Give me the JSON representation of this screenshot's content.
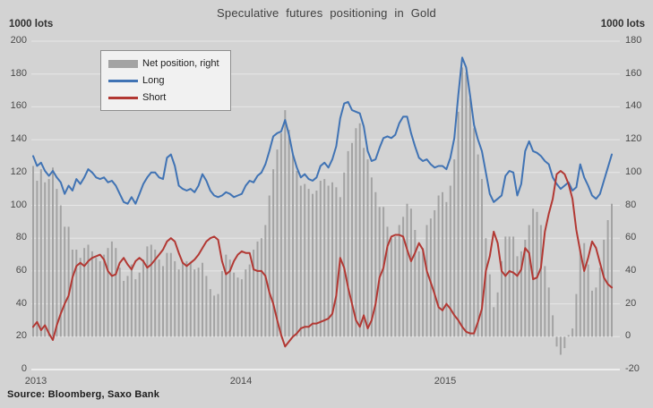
{
  "title": "Speculative futures positioning in Gold",
  "source": "Source: Bloomberg, Saxo Bank",
  "colors": {
    "background": "#d3d3d3",
    "gridline": "#e7e7e7",
    "axis_line": "#f7f7f7",
    "bar": "#a3a3a3",
    "long_line": "#4073b4",
    "short_line": "#b23833",
    "title_text": "#3f3f3f",
    "tick_text": "#4a4a4a",
    "legend_bg": "#f1f1f1",
    "legend_border": "#8e8e8e"
  },
  "chart_data": {
    "type": "bar+line",
    "title": "Speculative futures positioning in Gold",
    "left_axis": {
      "label": "1000 lots",
      "min": 0,
      "max": 200,
      "step": 20
    },
    "right_axis": {
      "label": "1000 lots",
      "min": -20,
      "max": 180,
      "step": 20
    },
    "x_ticks": [
      {
        "label": "2013",
        "index": 0
      },
      {
        "label": "2014",
        "index": 52
      },
      {
        "label": "2015",
        "index": 104
      }
    ],
    "grid": true,
    "legend_position": "top-left-inside",
    "series": [
      {
        "name": "Net position, right",
        "type": "bar",
        "axis": "right",
        "color": "#a3a3a3",
        "values": [
          104,
          95,
          102,
          94,
          96,
          103,
          90,
          80,
          67,
          67,
          53,
          53,
          48,
          54,
          56,
          52,
          48,
          46,
          50,
          54,
          58,
          54,
          42,
          34,
          37,
          44,
          35,
          39,
          47,
          55,
          56,
          53,
          47,
          43,
          51,
          51,
          46,
          41,
          45,
          46,
          45,
          41,
          42,
          45,
          37,
          29,
          25,
          26,
          40,
          50,
          47,
          39,
          36,
          35,
          41,
          44,
          53,
          58,
          60,
          68,
          86,
          102,
          114,
          124,
          138,
          126,
          111,
          101,
          92,
          93,
          90,
          87,
          89,
          95,
          96,
          92,
          94,
          91,
          85,
          100,
          113,
          118,
          127,
          130,
          115,
          108,
          97,
          88,
          79,
          79,
          67,
          60,
          61,
          68,
          73,
          81,
          78,
          65,
          52,
          54,
          68,
          72,
          77,
          86,
          88,
          82,
          92,
          108,
          137,
          164,
          161,
          145,
          127,
          111,
          96,
          60,
          38,
          18,
          27,
          46,
          61,
          61,
          61,
          49,
          52,
          59,
          68,
          78,
          76,
          68,
          43,
          30,
          13,
          -6,
          -11,
          -7,
          1,
          5,
          26,
          53,
          57,
          44,
          28,
          30,
          42,
          59,
          71,
          81
        ]
      },
      {
        "name": "Long",
        "type": "line",
        "axis": "left",
        "color": "#4073b4",
        "values": [
          130,
          124,
          126,
          121,
          118,
          121,
          117,
          114,
          107,
          112,
          109,
          116,
          113,
          117,
          122,
          120,
          117,
          116,
          117,
          114,
          115,
          112,
          107,
          102,
          101,
          105,
          101,
          107,
          113,
          117,
          120,
          120,
          117,
          116,
          129,
          131,
          124,
          112,
          110,
          109,
          110,
          108,
          112,
          119,
          115,
          109,
          106,
          105,
          106,
          108,
          107,
          105,
          106,
          107,
          112,
          115,
          114,
          118,
          120,
          125,
          133,
          142,
          144,
          145,
          152,
          143,
          131,
          123,
          117,
          119,
          116,
          115,
          117,
          124,
          126,
          123,
          128,
          136,
          153,
          162,
          163,
          158,
          157,
          156,
          148,
          133,
          127,
          128,
          135,
          141,
          142,
          141,
          143,
          150,
          154,
          154,
          144,
          136,
          129,
          127,
          128,
          125,
          123,
          124,
          124,
          122,
          129,
          141,
          167,
          190,
          184,
          167,
          149,
          140,
          133,
          120,
          107,
          102,
          104,
          106,
          118,
          121,
          120,
          106,
          113,
          133,
          139,
          133,
          132,
          130,
          127,
          125,
          117,
          113,
          110,
          112,
          114,
          109,
          111,
          125,
          117,
          112,
          106,
          104,
          107,
          115,
          123,
          131
        ]
      },
      {
        "name": "Short",
        "type": "line",
        "axis": "left",
        "color": "#b23833",
        "values": [
          26,
          29,
          24,
          27,
          22,
          18,
          27,
          34,
          40,
          45,
          56,
          63,
          65,
          63,
          66,
          68,
          69,
          70,
          67,
          60,
          57,
          58,
          65,
          68,
          64,
          61,
          66,
          68,
          66,
          62,
          64,
          67,
          70,
          73,
          78,
          80,
          78,
          71,
          65,
          63,
          65,
          67,
          70,
          74,
          78,
          80,
          81,
          79,
          66,
          58,
          60,
          66,
          70,
          72,
          71,
          71,
          61,
          60,
          60,
          57,
          47,
          40,
          30,
          21,
          14,
          17,
          20,
          22,
          25,
          26,
          26,
          28,
          28,
          29,
          30,
          31,
          34,
          45,
          68,
          62,
          50,
          40,
          30,
          26,
          33,
          25,
          30,
          40,
          56,
          62,
          75,
          81,
          82,
          82,
          81,
          73,
          66,
          71,
          77,
          73,
          60,
          53,
          46,
          38,
          36,
          40,
          37,
          33,
          30,
          26,
          23,
          22,
          22,
          29,
          37,
          60,
          69,
          84,
          77,
          60,
          57,
          60,
          59,
          57,
          61,
          74,
          71,
          55,
          56,
          62,
          84,
          95,
          104,
          119,
          121,
          119,
          113,
          104,
          85,
          72,
          60,
          68,
          78,
          74,
          65,
          56,
          52,
          50
        ]
      }
    ]
  }
}
